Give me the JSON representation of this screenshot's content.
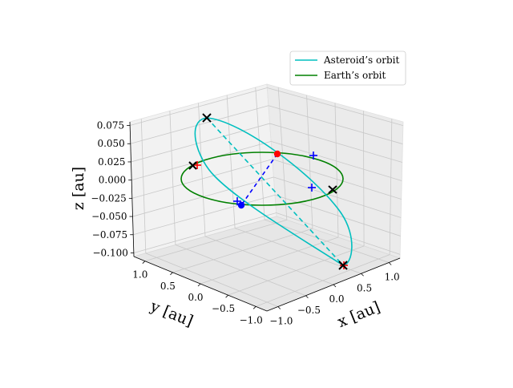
{
  "chart_data": {
    "type": "line",
    "projection": "3d",
    "title": "",
    "xlabel": "x [au]",
    "ylabel": "y [au]",
    "zlabel": "z [au]",
    "xlim": [
      -1.2,
      1.2
    ],
    "ylim": [
      -1.2,
      1.2
    ],
    "zlim": [
      -0.105,
      0.08
    ],
    "x_ticks": [
      "−1.0",
      "−0.5",
      "0.0",
      "0.5",
      "1.0"
    ],
    "y_ticks": [
      "−1.0",
      "−0.5",
      "0.0",
      "0.5",
      "1.0"
    ],
    "z_ticks": [
      "−0.100",
      "−0.075",
      "−0.050",
      "−0.025",
      "0.000",
      "0.025",
      "0.050",
      "0.075"
    ],
    "x_tick_values": [
      -1.0,
      -0.5,
      0.0,
      0.5,
      1.0
    ],
    "y_tick_values": [
      -1.0,
      -0.5,
      0.0,
      0.5,
      1.0
    ],
    "z_tick_values": [
      -0.1,
      -0.075,
      -0.05,
      -0.025,
      0.0,
      0.025,
      0.05,
      0.075
    ],
    "grid": true,
    "legend_position": "top-right",
    "series": [
      {
        "name": "Asteroid’s orbit",
        "color": "#00bfbf"
      },
      {
        "name": "Earth’s orbit",
        "color": "#008000"
      }
    ],
    "earth_orbit": {
      "radius_au": 1.0,
      "z": 0.0
    },
    "asteroid_orbit": {
      "perihelion_au": 0.7,
      "aphelion_au": 1.35,
      "inclination_deg": 4.0
    },
    "markers": [
      {
        "kind": "earth-position",
        "symbol": "dot",
        "color": "#ff0000",
        "x": 0.85,
        "y": 0.55,
        "z": 0.0
      },
      {
        "kind": "asteroid-position",
        "symbol": "dot",
        "color": "#0000ff",
        "x": -0.75,
        "y": -0.6,
        "z": -0.02
      },
      {
        "kind": "node",
        "symbol": "x",
        "color": "#000000",
        "x": -0.86,
        "y": 1.0,
        "z": 0.0
      },
      {
        "kind": "node",
        "symbol": "x",
        "color": "#000000",
        "x": 0.9,
        "y": -0.63,
        "z": 0.0
      },
      {
        "kind": "apsis",
        "symbol": "x",
        "color": "#000000",
        "x": -1.0,
        "y": 0.93,
        "z": 0.07
      },
      {
        "kind": "apsis",
        "symbol": "x",
        "color": "#000000",
        "x": 0.8,
        "y": -1.05,
        "z": -0.1
      },
      {
        "kind": "crossing",
        "symbol": "plus",
        "color": "#ff0000",
        "x": -0.85,
        "y": 1.02,
        "z": 0.0
      },
      {
        "kind": "crossing",
        "symbol": "plus",
        "color": "#ff0000",
        "x": 0.82,
        "y": -1.04,
        "z": -0.1
      },
      {
        "kind": "crossing",
        "symbol": "plus",
        "color": "#0000ff",
        "x": 0.98,
        "y": 0.22,
        "z": 0.0
      },
      {
        "kind": "crossing",
        "symbol": "plus",
        "color": "#0000ff",
        "x": 0.55,
        "y": -0.62,
        "z": 0.0
      },
      {
        "kind": "crossing",
        "symbol": "plus",
        "color": "#0000ff",
        "x": -0.72,
        "y": -0.58,
        "z": -0.02
      }
    ]
  }
}
